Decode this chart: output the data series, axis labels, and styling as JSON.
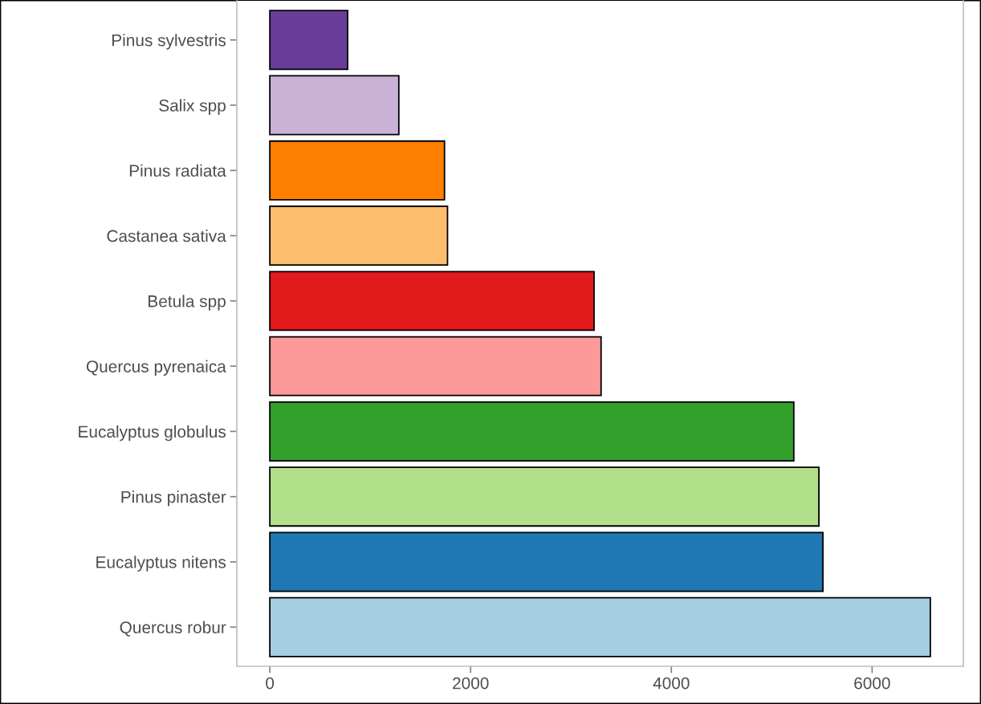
{
  "chart_data": {
    "type": "bar",
    "orientation": "horizontal",
    "categories": [
      "Pinus sylvestris",
      "Salix spp",
      "Pinus radiata",
      "Castanea sativa",
      "Betula spp",
      "Quercus pyrenaica",
      "Eucalyptus globulus",
      "Pinus pinaster",
      "Eucalyptus nitens",
      "Quercus robur"
    ],
    "values": [
      775,
      1285,
      1740,
      1770,
      3230,
      3300,
      5220,
      5470,
      5510,
      6580
    ],
    "colors": [
      "#6a3d9a",
      "#cab2d6",
      "#ff7f00",
      "#fdbf6f",
      "#e31a1c",
      "#fb9a99",
      "#33a02c",
      "#b2df8a",
      "#1f78b4",
      "#a6cee3"
    ],
    "xlim": [
      -329,
      6909
    ],
    "xticks": [
      0,
      2000,
      4000,
      6000
    ],
    "grid": false,
    "legend": false
  }
}
